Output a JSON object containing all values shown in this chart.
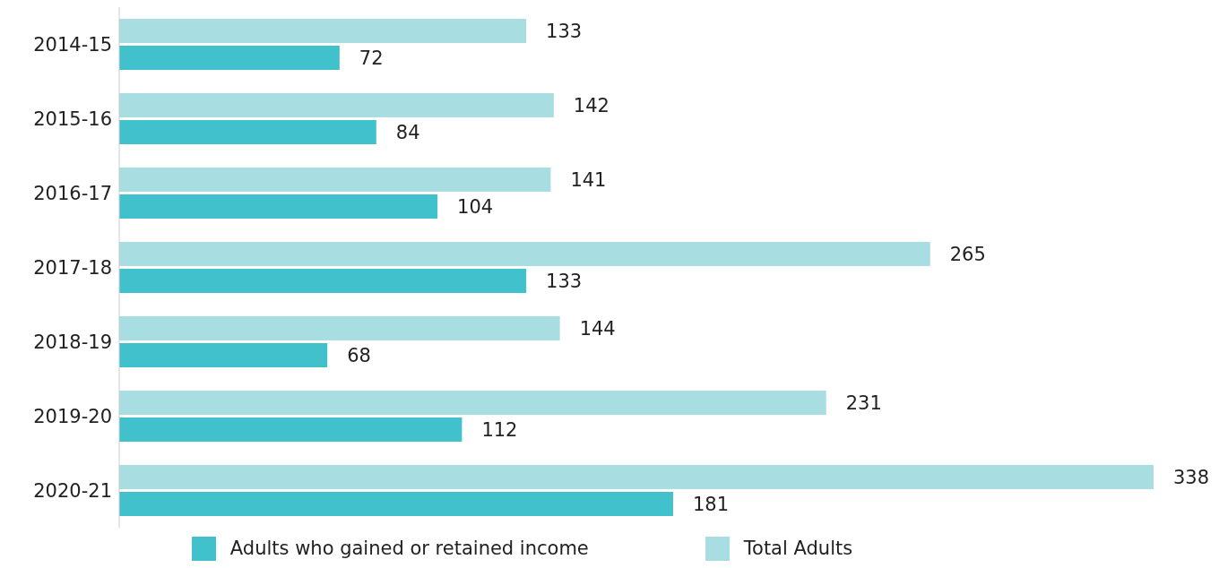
{
  "chart_data": {
    "type": "bar",
    "orientation": "horizontal",
    "categories": [
      "2014-15",
      "2015-16",
      "2016-17",
      "2017-18",
      "2018-19",
      "2019-20",
      "2020-21"
    ],
    "series": [
      {
        "name": "Total Adults",
        "color": "#a8dde1",
        "values": [
          133,
          142,
          141,
          265,
          144,
          231,
          338
        ]
      },
      {
        "name": "Adults who gained or retained income",
        "color": "#40c1cc",
        "values": [
          72,
          84,
          104,
          133,
          68,
          112,
          181
        ]
      }
    ],
    "data_labels": true,
    "legend": "bottom",
    "grid": false
  }
}
